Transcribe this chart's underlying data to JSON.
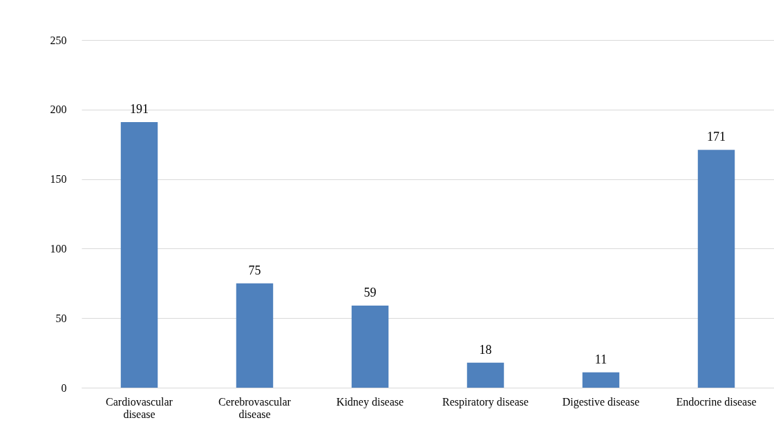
{
  "chart_data": {
    "type": "bar",
    "categories": [
      "Cardiovascular disease",
      "Cerebrovascular disease",
      "Kidney disease",
      "Respiratory disease",
      "Digestive disease",
      "Endocrine disease"
    ],
    "values": [
      191,
      75,
      59,
      18,
      11,
      171
    ],
    "color": "#4f81bd",
    "ylim": [
      0,
      250
    ],
    "yticks": [
      0,
      50,
      100,
      150,
      200,
      250
    ],
    "grid": "y",
    "data_labels": true
  }
}
